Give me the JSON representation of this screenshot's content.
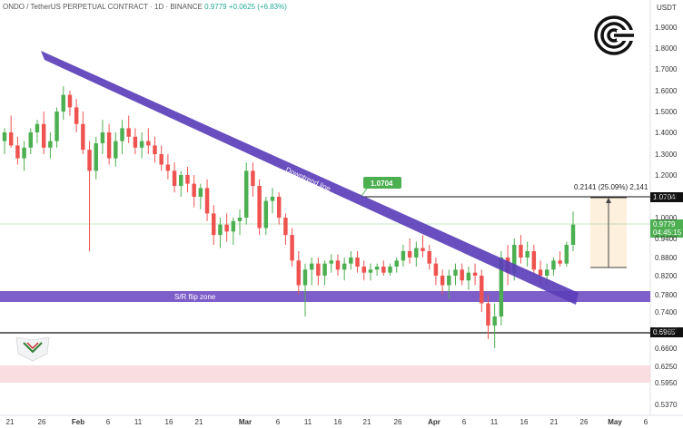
{
  "header": {
    "symbol": "ONDO / TetherUS PERPETUAL CONTRACT · 1D · BINANCE",
    "price": "0.9779",
    "change": "+0.0625 (+6.83%)"
  },
  "colors": {
    "up": "#26a69a",
    "up_bright": "#4caf50",
    "down": "#ef5350",
    "trend_band": "#5b3fb8",
    "sr_band": "#7e5fc9",
    "pink_zone": "#f8d7da",
    "measure_fill": "#fdf0dd"
  },
  "chart_data": {
    "type": "candlestick",
    "ylabel": "USDT",
    "yticks": [
      "0.5370",
      "0.5950",
      "0.6250",
      "0.6600",
      "0.7000",
      "0.7400",
      "0.7800",
      "0.8200",
      "0.8800",
      "0.9400",
      "1.0000",
      "1.1000",
      "1.2000",
      "1.3000",
      "1.4000",
      "1.5000",
      "1.6000",
      "1.7000",
      "1.8000",
      "1.9000"
    ],
    "xticks": [
      "21",
      "26",
      "Feb",
      "6",
      "11",
      "16",
      "21",
      "Mar",
      "6",
      "11",
      "16",
      "21",
      "26",
      "Apr",
      "6",
      "11",
      "16",
      "21",
      "26",
      "May",
      "6"
    ],
    "annotations": {
      "trend_label": "Downtrend line",
      "sr_label": "S/R flip zone",
      "target_tag": "1.0704",
      "measure_label": "0.2141 (25.09%) 2,141",
      "level_high": "1.0704",
      "level_low": "0.6965",
      "price_tag": "0.9779",
      "countdown": "04:45:15"
    },
    "candles": [
      [
        1.36,
        1.42,
        1.3,
        1.4
      ],
      [
        1.4,
        1.48,
        1.33,
        1.34
      ],
      [
        1.34,
        1.38,
        1.25,
        1.28
      ],
      [
        1.28,
        1.36,
        1.22,
        1.33
      ],
      [
        1.33,
        1.42,
        1.3,
        1.4
      ],
      [
        1.4,
        1.46,
        1.35,
        1.44
      ],
      [
        1.44,
        1.5,
        1.3,
        1.33
      ],
      [
        1.33,
        1.4,
        1.28,
        1.36
      ],
      [
        1.36,
        1.52,
        1.33,
        1.5
      ],
      [
        1.5,
        1.62,
        1.46,
        1.58
      ],
      [
        1.58,
        1.6,
        1.48,
        1.52
      ],
      [
        1.52,
        1.56,
        1.4,
        1.44
      ],
      [
        1.44,
        1.5,
        1.3,
        1.32
      ],
      [
        1.32,
        1.36,
        0.9,
        1.22
      ],
      [
        1.22,
        1.38,
        1.18,
        1.35
      ],
      [
        1.35,
        1.46,
        1.3,
        1.4
      ],
      [
        1.4,
        1.44,
        1.25,
        1.28
      ],
      [
        1.28,
        1.4,
        1.24,
        1.36
      ],
      [
        1.36,
        1.46,
        1.3,
        1.42
      ],
      [
        1.42,
        1.48,
        1.35,
        1.38
      ],
      [
        1.38,
        1.42,
        1.3,
        1.33
      ],
      [
        1.33,
        1.4,
        1.28,
        1.36
      ],
      [
        1.36,
        1.42,
        1.3,
        1.34
      ],
      [
        1.34,
        1.38,
        1.26,
        1.3
      ],
      [
        1.3,
        1.34,
        1.22,
        1.25
      ],
      [
        1.25,
        1.3,
        1.18,
        1.22
      ],
      [
        1.22,
        1.26,
        1.12,
        1.15
      ],
      [
        1.15,
        1.22,
        1.1,
        1.2
      ],
      [
        1.2,
        1.24,
        1.12,
        1.16
      ],
      [
        1.16,
        1.2,
        1.05,
        1.1
      ],
      [
        1.1,
        1.16,
        1.04,
        1.14
      ],
      [
        1.14,
        1.18,
        0.99,
        1.02
      ],
      [
        1.02,
        1.06,
        0.92,
        0.95
      ],
      [
        0.95,
        1.0,
        0.91,
        0.98
      ],
      [
        0.98,
        1.02,
        0.93,
        0.96
      ],
      [
        0.96,
        1.0,
        0.92,
        0.99
      ],
      [
        0.99,
        1.04,
        0.95,
        1.0
      ],
      [
        1.0,
        1.26,
        0.98,
        1.22
      ],
      [
        1.22,
        1.26,
        1.1,
        1.15
      ],
      [
        1.15,
        1.18,
        0.95,
        0.97
      ],
      [
        0.97,
        1.1,
        0.95,
        1.08
      ],
      [
        1.08,
        1.14,
        1.02,
        1.1
      ],
      [
        1.1,
        1.12,
        0.98,
        1.0
      ],
      [
        1.0,
        1.02,
        0.92,
        0.95
      ],
      [
        0.95,
        0.97,
        0.85,
        0.87
      ],
      [
        0.87,
        0.9,
        0.78,
        0.8
      ],
      [
        0.8,
        0.86,
        0.73,
        0.84
      ],
      [
        0.84,
        0.88,
        0.8,
        0.86
      ],
      [
        0.86,
        0.88,
        0.8,
        0.82
      ],
      [
        0.82,
        0.87,
        0.8,
        0.86
      ],
      [
        0.86,
        0.89,
        0.83,
        0.87
      ],
      [
        0.87,
        0.89,
        0.82,
        0.84
      ],
      [
        0.84,
        0.88,
        0.81,
        0.86
      ],
      [
        0.86,
        0.9,
        0.84,
        0.88
      ],
      [
        0.88,
        0.9,
        0.83,
        0.85
      ],
      [
        0.85,
        0.87,
        0.81,
        0.83
      ],
      [
        0.83,
        0.86,
        0.81,
        0.84
      ],
      [
        0.84,
        0.86,
        0.82,
        0.85
      ],
      [
        0.85,
        0.87,
        0.82,
        0.83
      ],
      [
        0.83,
        0.86,
        0.82,
        0.85
      ],
      [
        0.85,
        0.88,
        0.83,
        0.87
      ],
      [
        0.87,
        0.92,
        0.85,
        0.9
      ],
      [
        0.9,
        0.94,
        0.86,
        0.88
      ],
      [
        0.88,
        0.93,
        0.85,
        0.91
      ],
      [
        0.91,
        0.95,
        0.88,
        0.9
      ],
      [
        0.9,
        0.92,
        0.84,
        0.86
      ],
      [
        0.86,
        0.88,
        0.8,
        0.82
      ],
      [
        0.82,
        0.84,
        0.78,
        0.8
      ],
      [
        0.8,
        0.84,
        0.77,
        0.82
      ],
      [
        0.82,
        0.86,
        0.8,
        0.84
      ],
      [
        0.84,
        0.86,
        0.8,
        0.81
      ],
      [
        0.81,
        0.85,
        0.79,
        0.83
      ],
      [
        0.83,
        0.86,
        0.8,
        0.82
      ],
      [
        0.82,
        0.84,
        0.74,
        0.76
      ],
      [
        0.76,
        0.78,
        0.68,
        0.71
      ],
      [
        0.71,
        0.76,
        0.66,
        0.73
      ],
      [
        0.73,
        0.9,
        0.71,
        0.88
      ],
      [
        0.88,
        0.92,
        0.8,
        0.83
      ],
      [
        0.83,
        0.94,
        0.81,
        0.92
      ],
      [
        0.92,
        0.95,
        0.86,
        0.88
      ],
      [
        0.88,
        0.93,
        0.85,
        0.9
      ],
      [
        0.9,
        0.92,
        0.82,
        0.84
      ],
      [
        0.84,
        0.87,
        0.8,
        0.82
      ],
      [
        0.82,
        0.86,
        0.8,
        0.84
      ],
      [
        0.84,
        0.88,
        0.82,
        0.87
      ],
      [
        0.87,
        0.9,
        0.85,
        0.86
      ],
      [
        0.86,
        0.93,
        0.85,
        0.92
      ],
      [
        0.92,
        1.03,
        0.9,
        0.98
      ]
    ]
  }
}
